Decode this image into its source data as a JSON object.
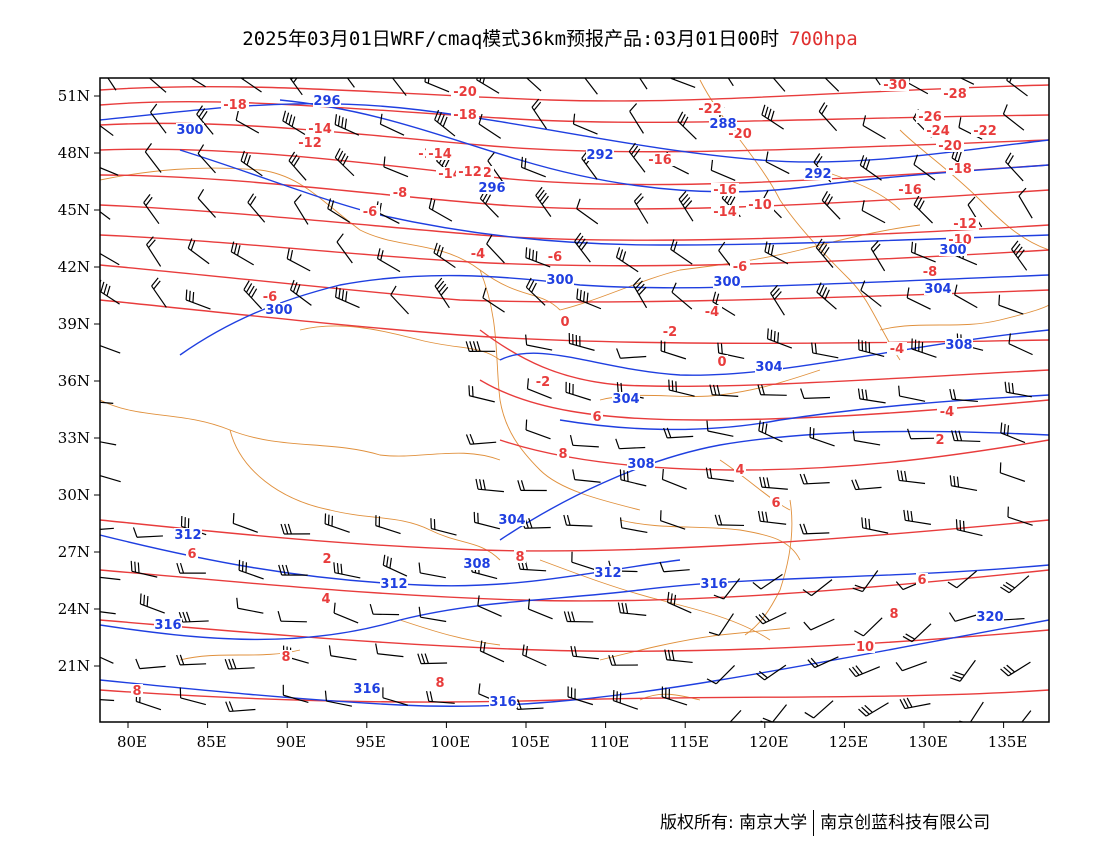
{
  "title": {
    "main": "2025年03月01日WRF/cmaq模式36km预报产品:03月01日00时",
    "level": "700hpa"
  },
  "colors": {
    "temperature": "#e83c3c",
    "height": "#1f3fe0",
    "border": "#e0903c",
    "wind": "#000000",
    "frame": "#000000"
  },
  "axes": {
    "lat_labels": [
      "51N",
      "48N",
      "45N",
      "42N",
      "39N",
      "36N",
      "33N",
      "30N",
      "27N",
      "24N",
      "21N"
    ],
    "lat_values": [
      51,
      48,
      45,
      42,
      39,
      36,
      33,
      30,
      27,
      24,
      21
    ],
    "lon_labels": [
      "80E",
      "85E",
      "90E",
      "95E",
      "100E",
      "105E",
      "110E",
      "115E",
      "120E",
      "125E",
      "130E",
      "135E"
    ],
    "lon_values": [
      80,
      85,
      90,
      95,
      100,
      105,
      110,
      115,
      120,
      125,
      130,
      135
    ],
    "lon_range": [
      78,
      138
    ],
    "lat_range": [
      18,
      52
    ]
  },
  "height_contours": [
    {
      "value": 288,
      "label": "288"
    },
    {
      "value": 292,
      "label": "292"
    },
    {
      "value": 296,
      "label": "296"
    },
    {
      "value": 300,
      "label": "300"
    },
    {
      "value": 304,
      "label": "304"
    },
    {
      "value": 308,
      "label": "308"
    },
    {
      "value": 312,
      "label": "312"
    },
    {
      "value": 316,
      "label": "316"
    },
    {
      "value": 320,
      "label": "320"
    }
  ],
  "temperature_contours": [
    {
      "value": -30,
      "label": "-30"
    },
    {
      "value": -28,
      "label": "-28"
    },
    {
      "value": -26,
      "label": "-26"
    },
    {
      "value": -24,
      "label": "-24"
    },
    {
      "value": -22,
      "label": "-22"
    },
    {
      "value": -20,
      "label": "-20"
    },
    {
      "value": -18,
      "label": "-18"
    },
    {
      "value": -16,
      "label": "-16"
    },
    {
      "value": -14,
      "label": "-14"
    },
    {
      "value": -12,
      "label": "-12"
    },
    {
      "value": -10,
      "label": "-10"
    },
    {
      "value": -8,
      "label": "-8"
    },
    {
      "value": -6,
      "label": "-6"
    },
    {
      "value": -4,
      "label": "-4"
    },
    {
      "value": -2,
      "label": "-2"
    },
    {
      "value": 0,
      "label": "0"
    },
    {
      "value": 2,
      "label": "2"
    },
    {
      "value": 4,
      "label": "4"
    },
    {
      "value": 6,
      "label": "6"
    },
    {
      "value": 8,
      "label": "8"
    },
    {
      "value": 10,
      "label": "10"
    }
  ],
  "footer": {
    "copyright": "版权所有: 南京大学",
    "company": "南京创蓝科技有限公司"
  }
}
